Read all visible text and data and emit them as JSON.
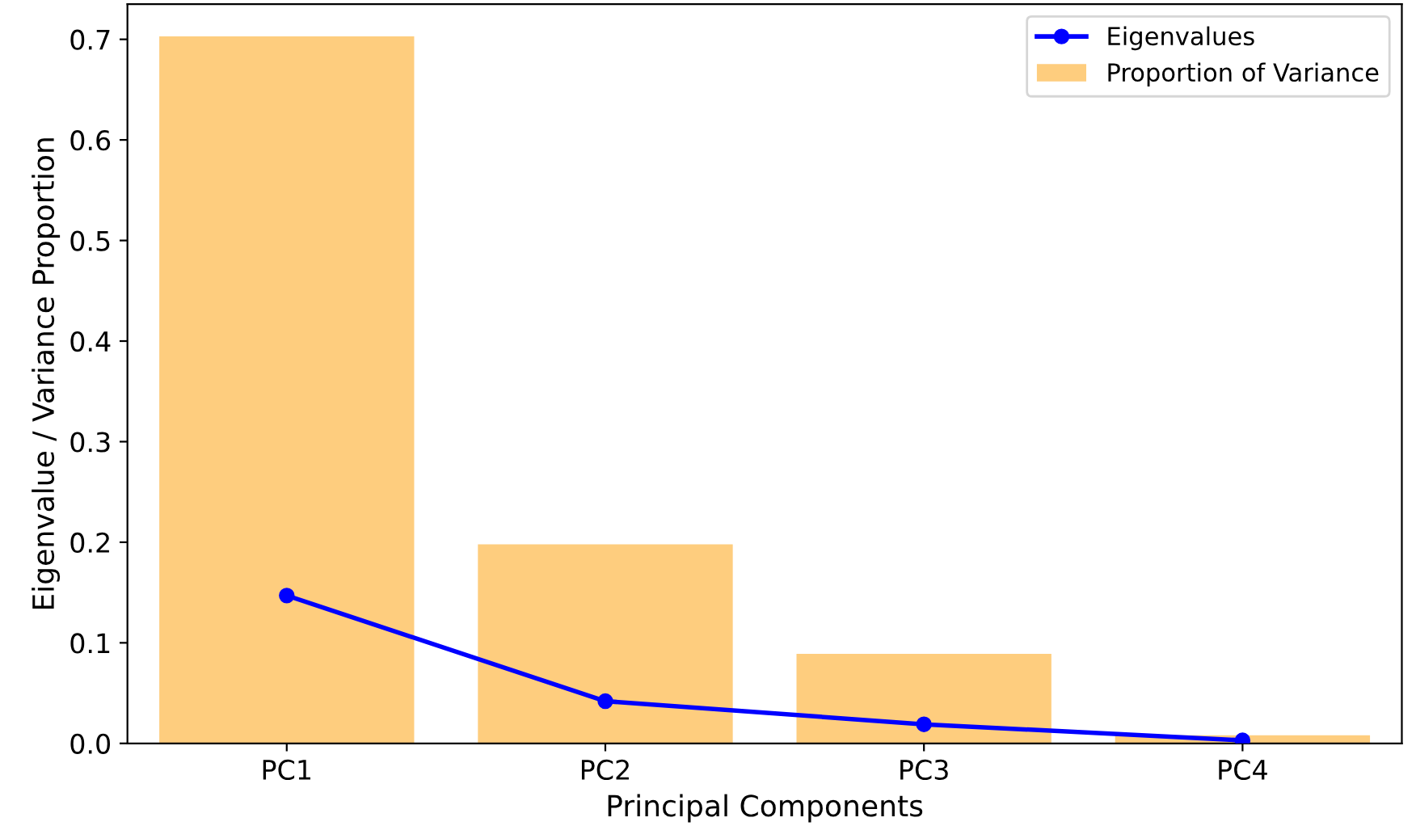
{
  "chart_data": {
    "type": "bar",
    "xlabel": "Principal Components",
    "ylabel": "Eigenvalue / Variance Proportion",
    "categories": [
      "PC1",
      "PC2",
      "PC3",
      "PC4"
    ],
    "series": [
      {
        "name": "Eigenvalues",
        "type": "line",
        "color": "#0000ff",
        "values": [
          0.147,
          0.042,
          0.019,
          0.003
        ]
      },
      {
        "name": "Proportion of Variance",
        "color": "#fecd7e",
        "values": [
          0.703,
          0.198,
          0.089,
          0.008
        ]
      }
    ],
    "ylim": [
      0,
      0.735
    ],
    "yticks": [
      {
        "value": 0,
        "label": "0.0"
      },
      0.1,
      0.2,
      0.3,
      0.4,
      0.5,
      0.6,
      0.7
    ],
    "marker": "circle",
    "line_style": "solid",
    "legend": "top right",
    "grid": false
  }
}
